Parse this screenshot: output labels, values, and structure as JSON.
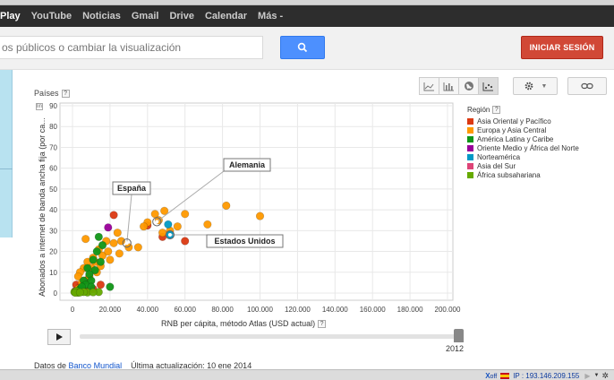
{
  "gbar": {
    "links": [
      "Play",
      "YouTube",
      "Noticias",
      "Gmail",
      "Drive",
      "Calendar",
      "Más -"
    ]
  },
  "header": {
    "search_value": "os públicos o cambiar la visualización",
    "search_button_icon": "search-icon",
    "signin_label": "INICIAR SESIÓN"
  },
  "toolbar": {
    "view_buttons": [
      "line-chart-icon",
      "bar-chart-icon",
      "map-icon",
      "scatter-chart-icon"
    ],
    "active_view": "scatter-chart-icon",
    "settings_icon": "gear-icon",
    "link_icon": "link-icon"
  },
  "y_picker": {
    "label": "Países",
    "help": "?",
    "log_toggle": "lin"
  },
  "legend": {
    "title": "Región",
    "help": "?",
    "items": [
      {
        "label": "Asia Oriental y Pacífico",
        "color": "#dc3912"
      },
      {
        "label": "Europa y Asia Central",
        "color": "#ff9900"
      },
      {
        "label": "América Latina y Caribe",
        "color": "#109618"
      },
      {
        "label": "Oriente Medio y África del Norte",
        "color": "#990099"
      },
      {
        "label": "Norteamérica",
        "color": "#0099c6"
      },
      {
        "label": "Asia del Sur",
        "color": "#dd4477"
      },
      {
        "label": "África subsahariana",
        "color": "#66aa00"
      }
    ]
  },
  "x_label": "RNB per cápita, método Atlas (USD actual)",
  "x_help": "?",
  "y_label": "Abonados a internet de banda ancha fija (por ca...",
  "timeline": {
    "play_icon": "play-icon",
    "year": "2012"
  },
  "footer": {
    "prefix": "Datos de",
    "source": "Banco Mundial",
    "updated": "Última actualización: 10 ene 2014"
  },
  "statusbar": {
    "xoff_x": "X",
    "xoff_text": "off",
    "ip": "IP : 193.146.209.155"
  },
  "chart_data": {
    "type": "scatter",
    "xlabel": "RNB per cápita, método Atlas (USD actual)",
    "ylabel": "Abonados a internet de banda ancha fija (por ca...",
    "xlim": [
      0,
      200000
    ],
    "ylim": [
      0,
      90
    ],
    "x_ticks": [
      0,
      20000,
      40000,
      60000,
      80000,
      100000,
      120000,
      140000,
      160000,
      180000,
      200000
    ],
    "x_tick_labels": [
      "0",
      "20.000",
      "40.000",
      "60.000",
      "80.000",
      "100.000",
      "120.000",
      "140.000",
      "160.000",
      "180.000",
      "200.000"
    ],
    "y_ticks": [
      0,
      10,
      20,
      30,
      40,
      50,
      60,
      70,
      80,
      90
    ],
    "grid": true,
    "legend_position": "right",
    "series": [
      {
        "name": "Asia Oriental y Pacífico",
        "color": "#dc3912",
        "points": [
          [
            22000,
            37.5
          ],
          [
            40000,
            32.5
          ],
          [
            2000,
            4
          ],
          [
            4000,
            3
          ],
          [
            7000,
            6
          ],
          [
            11000,
            2
          ],
          [
            15000,
            4
          ],
          [
            60000,
            25
          ],
          [
            48000,
            27
          ],
          [
            8000,
            1
          ],
          [
            5000,
            1.5
          ]
        ]
      },
      {
        "name": "Europa y Asia Central",
        "color": "#ff9900",
        "points": [
          [
            82000,
            42
          ],
          [
            100000,
            37
          ],
          [
            72000,
            33
          ],
          [
            49000,
            39.5
          ],
          [
            60000,
            38
          ],
          [
            44000,
            38
          ],
          [
            40000,
            34
          ],
          [
            38000,
            32
          ],
          [
            46000,
            35
          ],
          [
            56000,
            32
          ],
          [
            52000,
            30
          ],
          [
            48000,
            29
          ],
          [
            35000,
            22
          ],
          [
            26000,
            25
          ],
          [
            18000,
            25
          ],
          [
            14000,
            21
          ],
          [
            16000,
            18
          ],
          [
            20000,
            16
          ],
          [
            12000,
            15
          ],
          [
            8000,
            15
          ],
          [
            10000,
            12
          ],
          [
            6000,
            12
          ],
          [
            4000,
            10
          ],
          [
            3000,
            8
          ],
          [
            9000,
            8
          ],
          [
            13000,
            10
          ],
          [
            19000,
            20
          ],
          [
            22000,
            24
          ],
          [
            25000,
            19
          ],
          [
            30000,
            22
          ],
          [
            7000,
            26
          ],
          [
            11000,
            17
          ],
          [
            5000,
            5
          ],
          [
            3000,
            2
          ],
          [
            15000,
            13
          ],
          [
            24000,
            29
          ]
        ]
      },
      {
        "name": "América Latina y Caribe",
        "color": "#109618",
        "points": [
          [
            14000,
            27
          ],
          [
            16000,
            23
          ],
          [
            13000,
            20
          ],
          [
            11000,
            16
          ],
          [
            12000,
            11
          ],
          [
            8000,
            12
          ],
          [
            9000,
            9
          ],
          [
            6000,
            6
          ],
          [
            10000,
            6
          ],
          [
            4000,
            2
          ],
          [
            3000,
            1
          ],
          [
            7000,
            4
          ],
          [
            20000,
            3
          ],
          [
            15000,
            15
          ],
          [
            5000,
            3
          ],
          [
            10000,
            3
          ]
        ]
      },
      {
        "name": "Oriente Medio y África del Norte",
        "color": "#990099",
        "points": [
          [
            19000,
            31.5
          ]
        ]
      },
      {
        "name": "Norteamérica",
        "color": "#0099c6",
        "points": [
          [
            52000,
            28
          ],
          [
            51000,
            33
          ]
        ]
      },
      {
        "name": "Asia del Sur",
        "color": "#dd4477",
        "points": [
          [
            1500,
            1
          ],
          [
            2500,
            0.5
          ]
        ]
      },
      {
        "name": "África subsahariana",
        "color": "#66aa00",
        "points": [
          [
            1000,
            0.5
          ],
          [
            2000,
            1
          ],
          [
            3000,
            0.2
          ],
          [
            8000,
            0.3
          ],
          [
            6000,
            0.5
          ],
          [
            14000,
            0.5
          ],
          [
            11000,
            0.4
          ],
          [
            1500,
            0.2
          ],
          [
            4000,
            0.3
          ]
        ]
      }
    ],
    "annotations": [
      {
        "label": "Alemania",
        "x": 45000,
        "y": 34.3
      },
      {
        "label": "España",
        "x": 29000,
        "y": 24
      },
      {
        "label": "Estados Unidos",
        "x": 52000,
        "y": 28
      }
    ]
  }
}
